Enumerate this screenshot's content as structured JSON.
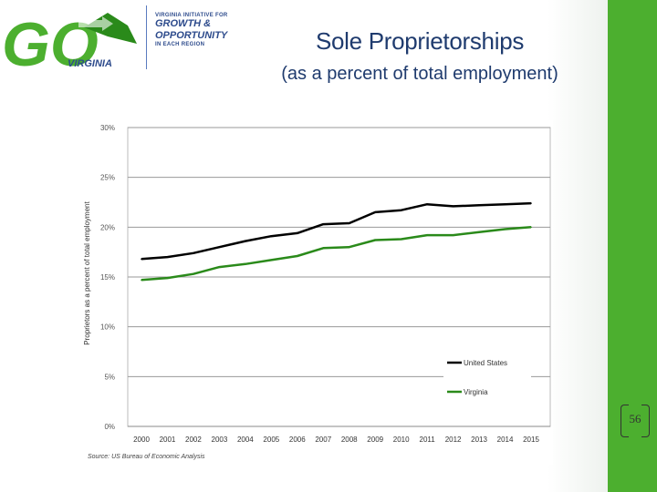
{
  "slide": {
    "title": "Sole Proprietorships",
    "subtitle": "(as a percent of total employment)",
    "page_number": "56"
  },
  "logo": {
    "go_text": "GO",
    "virginia_text": "VIRGINIA",
    "line1": "VIRGINIA INITIATIVE FOR",
    "line2": "GROWTH &",
    "line3": "OPPORTUNITY",
    "line4": "IN EACH REGION"
  },
  "colors": {
    "accent_green": "#4caf2f",
    "navy": "#1f3b6e",
    "us_line": "#000000",
    "va_line": "#2a8a1a"
  },
  "chart_data": {
    "type": "line",
    "title": "",
    "xlabel": "",
    "ylabel": "Proprietors as a percent of total employment",
    "source": "Source: US Bureau of Economic Analysis",
    "categories": [
      "2000",
      "2001",
      "2002",
      "2003",
      "2004",
      "2005",
      "2006",
      "2007",
      "2008",
      "2009",
      "2010",
      "2011",
      "2012",
      "2013",
      "2014",
      "2015"
    ],
    "ylim": [
      0,
      30
    ],
    "yticks": [
      0,
      5,
      10,
      15,
      20,
      25,
      30
    ],
    "ytick_labels": [
      "0%",
      "5%",
      "10%",
      "15%",
      "20%",
      "25%",
      "30%"
    ],
    "grid": true,
    "legend_position": "bottom-right",
    "series": [
      {
        "name": "United States",
        "color": "#000000",
        "values": [
          16.8,
          17.0,
          17.4,
          18.0,
          18.6,
          19.1,
          19.4,
          20.3,
          20.4,
          21.5,
          21.7,
          22.3,
          22.1,
          22.2,
          22.3,
          22.4
        ]
      },
      {
        "name": "Virginia",
        "color": "#2a8a1a",
        "values": [
          14.7,
          14.9,
          15.3,
          16.0,
          16.3,
          16.7,
          17.1,
          17.9,
          18.0,
          18.7,
          18.8,
          19.2,
          19.2,
          19.5,
          19.8,
          20.0
        ]
      }
    ]
  }
}
